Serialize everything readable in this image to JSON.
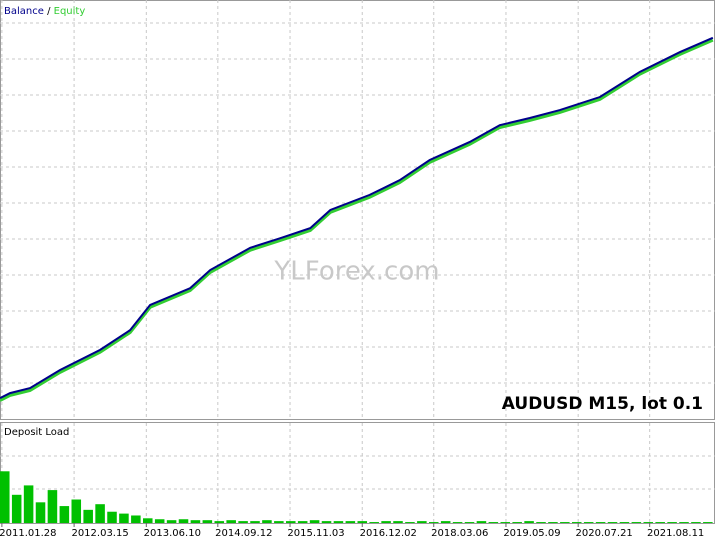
{
  "chart_data": [
    {
      "type": "line",
      "series": [
        {
          "name": "Balance",
          "color": "#00008b",
          "x": [
            0,
            1.4,
            4.2,
            8.4,
            14,
            18.2,
            21,
            26.6,
            29.4,
            35,
            39.2,
            43.4,
            46.2,
            51.7,
            55.9,
            60.1,
            65.7,
            69.9,
            74.1,
            78.3,
            83.9,
            89.5,
            95.1,
            99.7
          ],
          "values": [
            5.2,
            6.4,
            7.6,
            11.9,
            16.7,
            21.4,
            27.4,
            31.4,
            35.7,
            41,
            43.3,
            45.7,
            50,
            53.6,
            57.1,
            61.9,
            66.2,
            70.2,
            71.9,
            73.8,
            76.9,
            82.9,
            87.6,
            91
          ]
        },
        {
          "name": "Equity",
          "color": "#32cd32",
          "x": [
            0,
            1.4,
            4.2,
            8.4,
            14,
            18.2,
            21,
            26.6,
            29.4,
            35,
            39.2,
            43.4,
            46.2,
            51.7,
            55.9,
            60.1,
            65.7,
            69.9,
            74.1,
            78.3,
            83.9,
            89.5,
            95.1,
            99.7
          ],
          "values": [
            5,
            6.2,
            7.4,
            11.7,
            16.5,
            21.2,
            27.2,
            31.2,
            35.5,
            40.8,
            43.1,
            45.5,
            49.8,
            53.4,
            56.9,
            61.7,
            66,
            70,
            71.7,
            73.6,
            76.7,
            82.7,
            87.4,
            90.8
          ]
        }
      ],
      "xlim": [
        0,
        100
      ],
      "ylim": [
        0,
        100
      ],
      "xticks": [
        {
          "value": 3.9,
          "label": "2011.01.28"
        },
        {
          "value": 14,
          "label": "2012.03.15"
        },
        {
          "value": 24.1,
          "label": "2013.06.10"
        },
        {
          "value": 34.1,
          "label": "2014.09.12"
        },
        {
          "value": 44.2,
          "label": "2015.11.03"
        },
        {
          "value": 54.3,
          "label": "2016.12.02"
        },
        {
          "value": 64.3,
          "label": "2018.03.06"
        },
        {
          "value": 74.4,
          "label": "2019.05.09"
        },
        {
          "value": 84.5,
          "label": "2020.07.21"
        },
        {
          "value": 94.5,
          "label": "2021.08.11"
        }
      ],
      "grid": true,
      "annotation": "AUDUSD M15, lot 0.1",
      "watermark": "YLForex.com"
    },
    {
      "type": "bar",
      "title": "Deposit Load",
      "color": "#00c000",
      "ylim": [
        0,
        100
      ],
      "values": [
        55,
        30,
        40,
        22,
        35,
        18,
        25,
        14,
        20,
        12,
        10,
        8,
        5,
        4,
        3,
        4,
        3,
        3,
        2,
        3,
        2,
        2,
        3,
        2,
        2,
        2,
        3,
        2,
        2,
        2,
        2,
        1,
        2,
        2,
        1,
        2,
        1,
        2,
        1,
        1,
        2,
        1,
        1,
        1,
        2,
        1,
        1,
        1,
        1,
        1,
        1,
        1,
        1,
        1,
        1,
        1,
        1,
        1,
        1,
        1
      ]
    }
  ]
}
